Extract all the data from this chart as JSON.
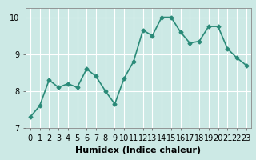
{
  "xlabel": "Humidex (Indice chaleur)",
  "x": [
    0,
    1,
    2,
    3,
    4,
    5,
    6,
    7,
    8,
    9,
    10,
    11,
    12,
    13,
    14,
    15,
    16,
    17,
    18,
    19,
    20,
    21,
    22,
    23
  ],
  "y": [
    7.3,
    7.6,
    8.3,
    8.1,
    8.2,
    8.1,
    8.6,
    8.4,
    8.0,
    7.65,
    8.35,
    8.8,
    9.65,
    9.5,
    10.0,
    10.0,
    9.6,
    9.3,
    9.35,
    9.75,
    9.75,
    9.15,
    8.9,
    8.7
  ],
  "line_color": "#2a8a78",
  "marker": "D",
  "marker_size": 2.5,
  "bg_color": "#cce9e5",
  "grid_color": "#ffffff",
  "ylim": [
    7.0,
    10.25
  ],
  "xlim": [
    -0.5,
    23.5
  ],
  "yticks": [
    7,
    8,
    9,
    10
  ],
  "xticks": [
    0,
    1,
    2,
    3,
    4,
    5,
    6,
    7,
    8,
    9,
    10,
    11,
    12,
    13,
    14,
    15,
    16,
    17,
    18,
    19,
    20,
    21,
    22,
    23
  ],
  "xlabel_fontsize": 8,
  "tick_fontsize": 7,
  "line_width": 1.2,
  "fig_bg_color": "#cce9e5"
}
